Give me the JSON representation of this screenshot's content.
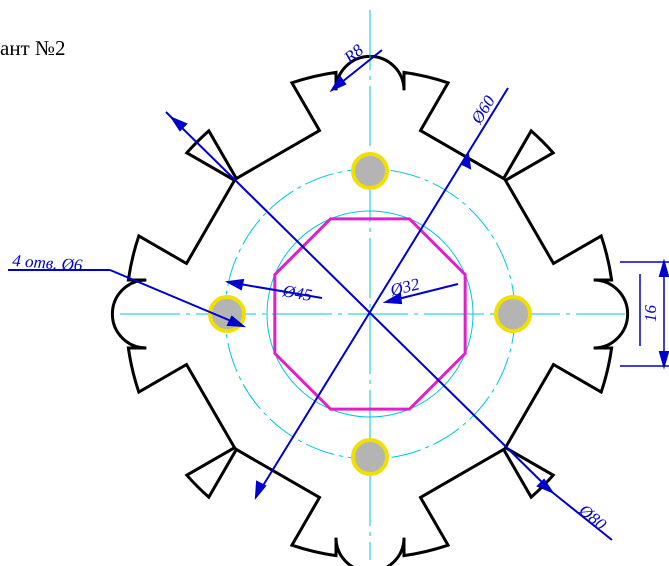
{
  "title": "ант №2",
  "dimensions": {
    "radius": "R8",
    "d60": "Ø60",
    "d45": "Ø45",
    "d32": "Ø32",
    "d80": "Ø80",
    "holes": "4 отв. Ø6",
    "slot_width": "16"
  },
  "colors": {
    "outline": "#000000",
    "dimension": "#0000cc",
    "centerline": "#00c8d8",
    "octagon": "#e020c8",
    "hole_fill": "#b4b4b4",
    "hole_ring": "#f0e000"
  }
}
